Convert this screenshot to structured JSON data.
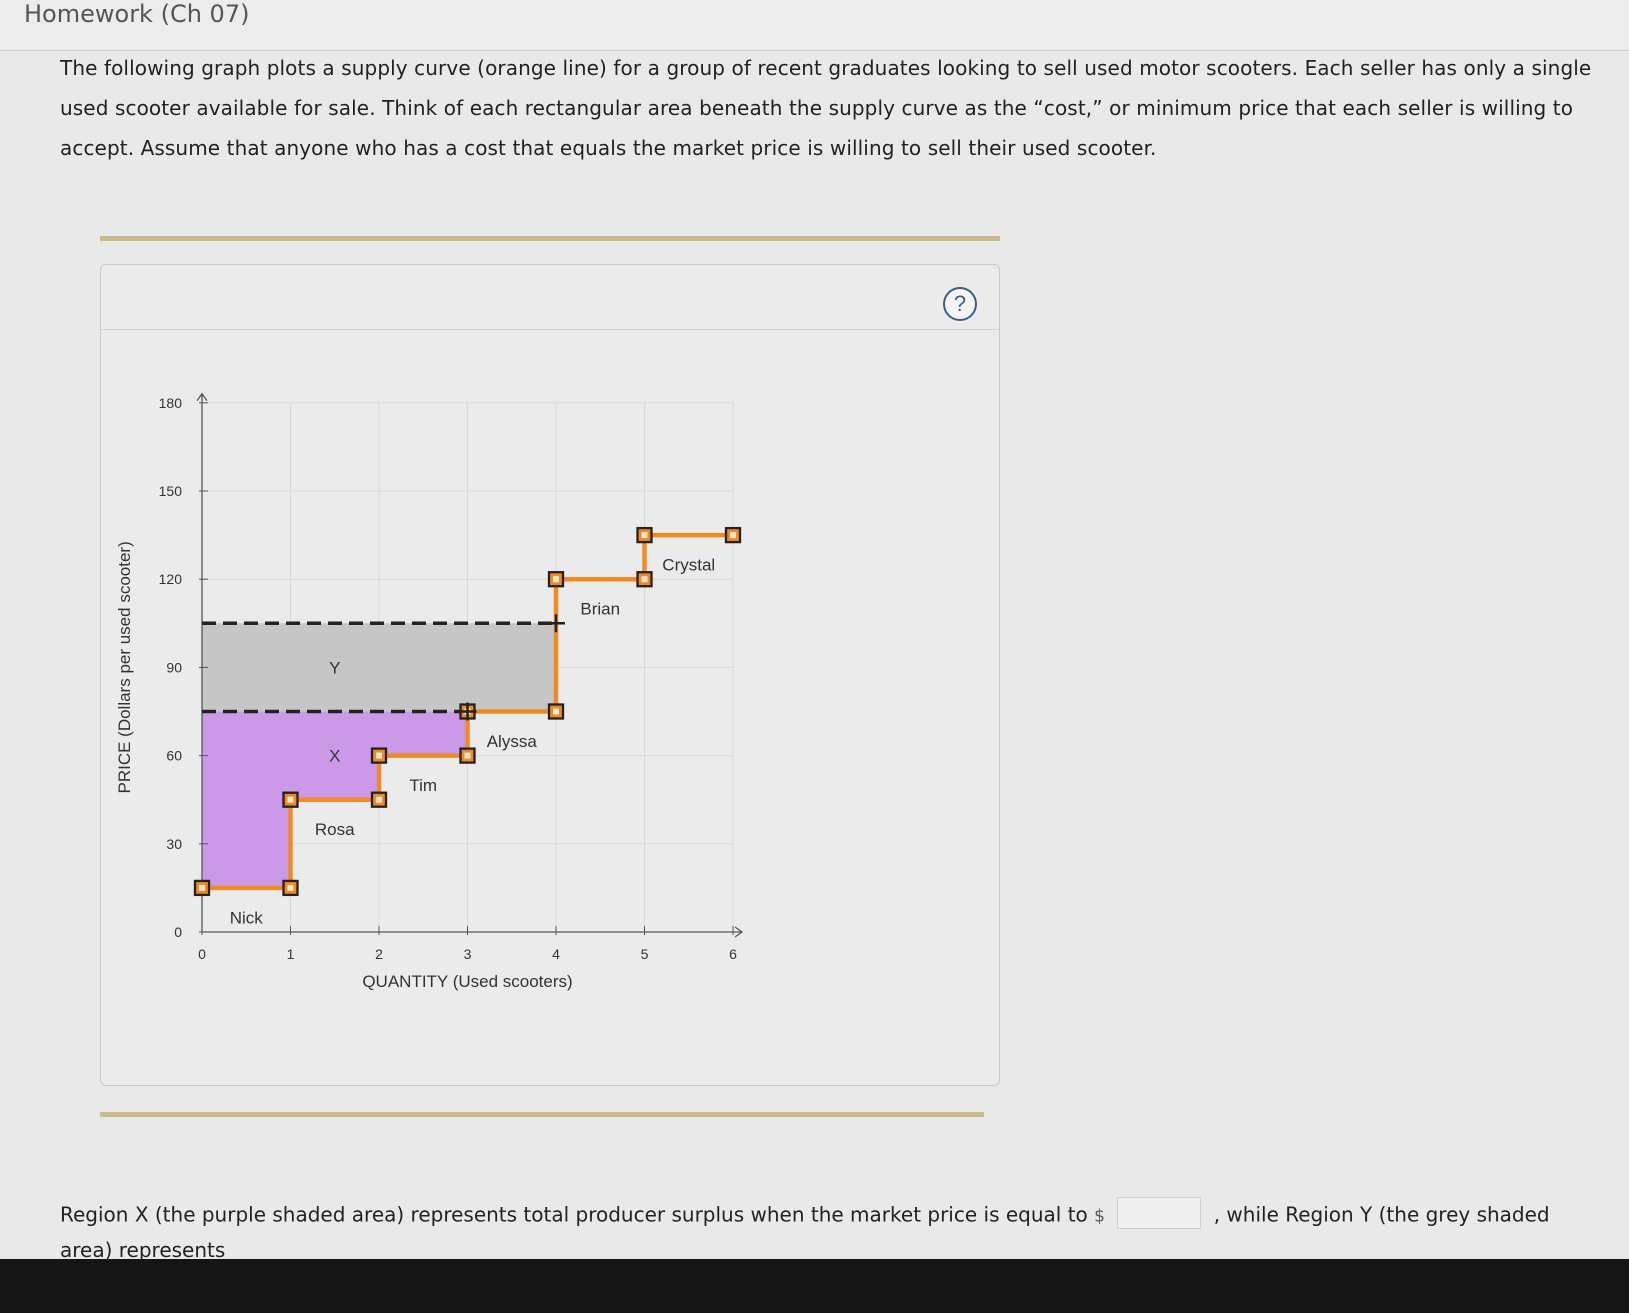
{
  "header": {
    "title": "Homework (Ch 07)"
  },
  "intro": {
    "text": "The following graph plots a supply curve (orange line) for a group of recent graduates looking to sell used motor scooters. Each seller has only a single used scooter available for sale. Think of each rectangular area beneath the supply curve as the “cost,” or minimum price that each seller is willing to accept. Assume that anyone who has a cost that equals the market price is willing to sell their used scooter."
  },
  "help": {
    "label": "?"
  },
  "chart_data": {
    "type": "line",
    "xlabel": "QUANTITY (Used scooters)",
    "ylabel": "PRICE (Dollars per used scooter)",
    "xlim": [
      0,
      6
    ],
    "ylim": [
      0,
      180
    ],
    "x_ticks": [
      0,
      1,
      2,
      3,
      4,
      5,
      6
    ],
    "y_ticks": [
      0,
      30,
      60,
      90,
      120,
      150,
      180
    ],
    "grid": true,
    "supply_steps": [
      {
        "seller": "Nick",
        "from": 0,
        "to": 1,
        "cost": 15
      },
      {
        "seller": "Rosa",
        "from": 1,
        "to": 2,
        "cost": 45
      },
      {
        "seller": "Tim",
        "from": 2,
        "to": 3,
        "cost": 60
      },
      {
        "seller": "Alyssa",
        "from": 3,
        "to": 4,
        "cost": 75
      },
      {
        "seller": "Brian",
        "from": 4,
        "to": 5,
        "cost": 120
      },
      {
        "seller": "Crystal",
        "from": 5,
        "to": 6,
        "cost": 135
      }
    ],
    "price_lines": [
      75,
      105
    ],
    "regions": [
      {
        "label": "X",
        "price": 75,
        "color": "#cc99e8"
      },
      {
        "label": "Y",
        "low": 75,
        "high": 105,
        "color": "#c6c6c6"
      }
    ],
    "supply_color": "#f08a24"
  },
  "question": {
    "part1": "Region X (the purple shaded area) represents total producer surplus when the market price is equal to",
    "currency": "$",
    "part2": ", while Region Y (the grey shaded",
    "cutoff": "area) represents"
  }
}
